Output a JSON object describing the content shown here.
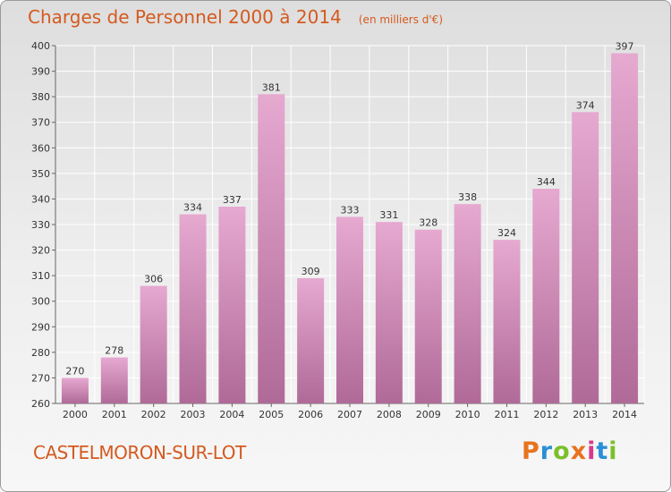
{
  "header": {
    "title": "Charges de Personnel 2000 à 2014",
    "subtitle": "(en milliers d'€)"
  },
  "footer": {
    "commune": "CASTELMORON-SUR-LOT",
    "logo_text": "Proxiti",
    "logo_colors": [
      "#e8731f",
      "#2a8fd6",
      "#7bbf2a",
      "#e8731f",
      "#d63a8a",
      "#2a8fd6",
      "#7bbf2a"
    ]
  },
  "chart_data": {
    "type": "bar",
    "categories": [
      "2000",
      "2001",
      "2002",
      "2003",
      "2004",
      "2005",
      "2006",
      "2007",
      "2008",
      "2009",
      "2010",
      "2011",
      "2012",
      "2013",
      "2014"
    ],
    "values": [
      270,
      278,
      306,
      334,
      337,
      381,
      309,
      333,
      331,
      328,
      338,
      324,
      344,
      374,
      397
    ],
    "title": "Charges de Personnel 2000 à 2014",
    "subtitle": "(en milliers d'€)",
    "xlabel": "",
    "ylabel": "",
    "ylim": [
      260,
      400
    ],
    "yticks": [
      260,
      270,
      280,
      290,
      300,
      310,
      320,
      330,
      340,
      350,
      360,
      370,
      380,
      390,
      400
    ],
    "grid": true,
    "legend": "none",
    "bar_color_top": "#e6a9d0",
    "bar_color_bottom": "#b06a98"
  }
}
